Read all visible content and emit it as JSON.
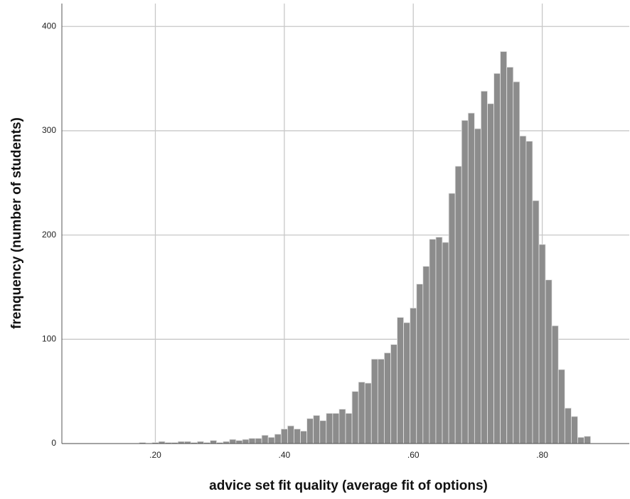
{
  "chart_data": {
    "type": "histogram",
    "xlabel": "advice set fit quality (average fit of options)",
    "ylabel": "frenquency (number of students)",
    "bins": [
      0.175,
      0.185,
      0.195,
      0.205,
      0.215,
      0.225,
      0.235,
      0.245,
      0.255,
      0.265,
      0.275,
      0.285,
      0.295,
      0.305,
      0.315,
      0.325,
      0.335,
      0.345,
      0.355,
      0.365,
      0.375,
      0.385,
      0.395,
      0.405,
      0.415,
      0.425,
      0.435,
      0.445,
      0.455,
      0.465,
      0.475,
      0.485,
      0.495,
      0.505,
      0.515,
      0.525,
      0.535,
      0.545,
      0.555,
      0.565,
      0.575,
      0.585,
      0.595,
      0.605,
      0.615,
      0.625,
      0.635,
      0.645,
      0.655,
      0.665,
      0.675,
      0.685,
      0.695,
      0.705,
      0.715,
      0.725,
      0.735,
      0.745,
      0.755,
      0.765,
      0.775,
      0.785,
      0.795,
      0.805,
      0.815,
      0.825,
      0.835,
      0.845,
      0.855,
      0.865,
      0.875
    ],
    "values": [
      1,
      0,
      1,
      2,
      1,
      1,
      2,
      2,
      1,
      2,
      1,
      3,
      1,
      2,
      4,
      3,
      4,
      5,
      5,
      8,
      6,
      9,
      14,
      17,
      14,
      12,
      24,
      27,
      22,
      29,
      29,
      33,
      29,
      50,
      59,
      58,
      81,
      81,
      87,
      95,
      121,
      116,
      130,
      153,
      170,
      196,
      198,
      193,
      240,
      266,
      310,
      317,
      302,
      338,
      326,
      355,
      376,
      361,
      347,
      295,
      290,
      233,
      191,
      157,
      113,
      71,
      34,
      26,
      6,
      7
    ],
    "color": "#8c8c8c",
    "xlim": [
      0.055,
      0.935
    ],
    "ylim": [
      0,
      422
    ],
    "xticks": [
      {
        "value": 0.2,
        "label": ".20"
      },
      {
        "value": 0.4,
        "label": ".40"
      },
      {
        "value": 0.6,
        "label": ".60"
      },
      {
        "value": 0.8,
        "label": ".80"
      }
    ],
    "yticks": [
      0,
      100,
      200,
      300,
      400
    ],
    "grid": true
  }
}
